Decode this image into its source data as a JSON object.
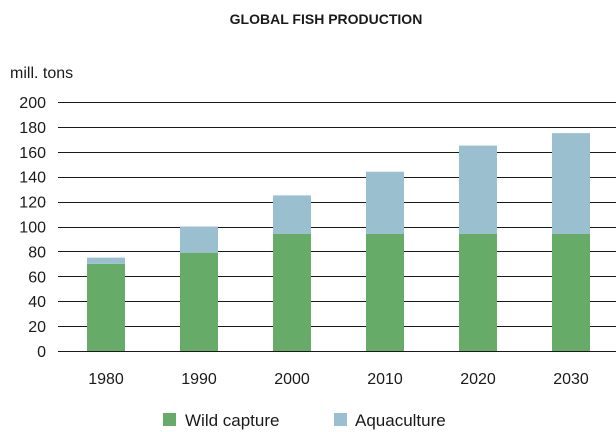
{
  "chart_data": {
    "type": "bar",
    "stacked": true,
    "title": "GLOBAL FISH PRODUCTION",
    "ylabel": "mill. tons",
    "xlabel": "",
    "categories": [
      "1980",
      "1990",
      "2000",
      "2010",
      "2020",
      "2030"
    ],
    "ylim": [
      0,
      200
    ],
    "yticks": [
      0,
      20,
      40,
      60,
      80,
      100,
      120,
      140,
      160,
      180,
      200
    ],
    "grid": true,
    "legend_position": "bottom",
    "series": [
      {
        "name": "Wild capture",
        "color": "#66ab68",
        "values": [
          70,
          79,
          94,
          94,
          94,
          94
        ]
      },
      {
        "name": "Aquaculture",
        "color": "#9ac0d0",
        "values": [
          5,
          21,
          31,
          50,
          71,
          81
        ]
      }
    ]
  }
}
